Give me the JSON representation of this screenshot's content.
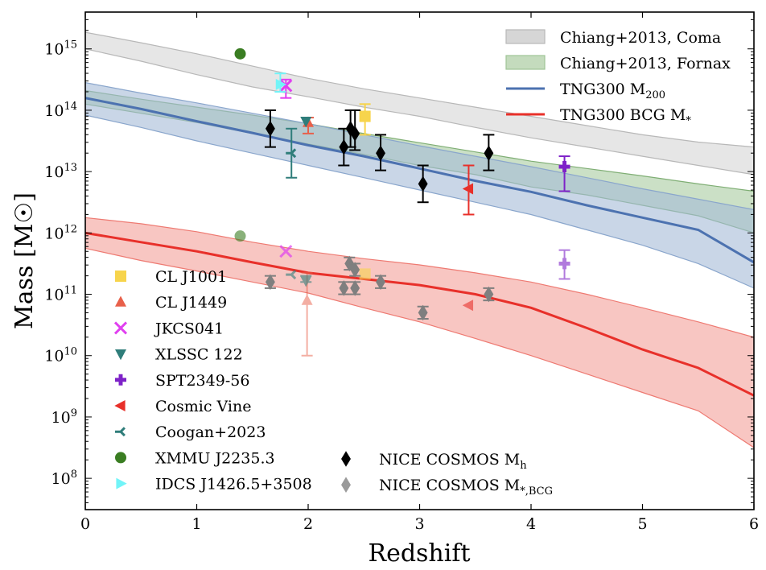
{
  "chart_data": {
    "type": "scatter",
    "title": "",
    "xlabel": "Redshift",
    "ylabel": "Mass [M☉]",
    "xlim": [
      0,
      6
    ],
    "ylim_log10": [
      7.49,
      15.6
    ],
    "yscale": "log",
    "grid": false,
    "x_ticks": [
      0,
      1,
      2,
      3,
      4,
      5,
      6
    ],
    "y_ticks": [
      {
        "log": 8,
        "label": "10",
        "exp": "8"
      },
      {
        "log": 9,
        "label": "10",
        "exp": "9"
      },
      {
        "log": 10,
        "label": "10",
        "exp": "10"
      },
      {
        "log": 11,
        "label": "10",
        "exp": "11"
      },
      {
        "log": 12,
        "label": "10",
        "exp": "12"
      },
      {
        "log": 13,
        "label": "10",
        "exp": "13"
      },
      {
        "log": 14,
        "label": "10",
        "exp": "14"
      },
      {
        "log": 15,
        "label": "10",
        "exp": "15"
      }
    ],
    "bands": [
      {
        "name": "Chiang+2013, Coma",
        "color": "#d6d6d6",
        "edge": "#b8b8b8",
        "x": [
          0,
          0.5,
          1,
          1.5,
          2,
          2.5,
          3,
          3.5,
          4,
          4.5,
          5,
          5.5,
          6
        ],
        "upper": [
          15.27,
          15.1,
          14.92,
          14.72,
          14.52,
          14.35,
          14.2,
          14.05,
          13.9,
          13.75,
          13.6,
          13.48,
          13.4
        ],
        "lower": [
          15.0,
          14.8,
          14.58,
          14.38,
          14.22,
          14.05,
          13.9,
          13.72,
          13.55,
          13.4,
          13.25,
          13.1,
          12.95
        ]
      },
      {
        "name": "Chiang+2013, Fornax",
        "color": "#a9cba0",
        "edge": "#7fae74",
        "x": [
          0,
          0.5,
          1,
          1.5,
          2,
          2.5,
          3,
          3.5,
          4,
          4.5,
          5,
          5.5,
          6
        ],
        "upper": [
          14.32,
          14.18,
          14.05,
          13.92,
          13.78,
          13.62,
          13.47,
          13.32,
          13.17,
          13.05,
          12.93,
          12.8,
          12.68
        ],
        "lower": [
          14.1,
          13.95,
          13.8,
          13.62,
          13.45,
          13.28,
          13.1,
          12.95,
          12.75,
          12.62,
          12.45,
          12.28,
          12.0
        ]
      },
      {
        "name": "TNG300 M200 scatter",
        "color": "#a5bbd7",
        "edge": "#8aa6cc",
        "x": [
          0,
          0.5,
          1,
          1.5,
          2,
          2.5,
          3,
          3.5,
          4,
          4.5,
          5,
          5.5,
          6
        ],
        "upper": [
          14.45,
          14.28,
          14.12,
          13.95,
          13.78,
          13.6,
          13.42,
          13.25,
          13.08,
          12.9,
          12.72,
          12.55,
          12.38
        ],
        "lower": [
          13.92,
          13.72,
          13.5,
          13.3,
          13.1,
          12.9,
          12.7,
          12.5,
          12.3,
          12.05,
          11.8,
          11.5,
          11.1
        ]
      },
      {
        "name": "TNG300 BCG M* scatter",
        "color": "#f4a09a",
        "edge": "#ee7a72",
        "x": [
          0,
          0.5,
          1,
          1.5,
          2,
          2.5,
          3,
          3.5,
          4,
          4.5,
          5,
          5.5,
          6
        ],
        "upper": [
          12.25,
          12.15,
          12.02,
          11.85,
          11.7,
          11.58,
          11.48,
          11.35,
          11.2,
          11.0,
          10.78,
          10.55,
          10.3
        ],
        "lower": [
          11.75,
          11.55,
          11.38,
          11.2,
          11.02,
          10.78,
          10.55,
          10.28,
          10.0,
          9.7,
          9.4,
          9.1,
          8.5
        ]
      }
    ],
    "lines": [
      {
        "name": "TNG300 M200",
        "sub": "200",
        "color": "#4c72b0",
        "x": [
          0,
          0.5,
          1,
          1.5,
          2,
          2.5,
          3,
          3.5,
          4,
          4.5,
          5,
          5.5,
          6
        ],
        "y": [
          14.2,
          14.02,
          13.82,
          13.63,
          13.43,
          13.25,
          13.05,
          12.85,
          12.67,
          12.45,
          12.25,
          12.05,
          11.52
        ]
      },
      {
        "name": "TNG300 BCG M*",
        "sub": "*",
        "color": "#e8302a",
        "x": [
          0,
          0.5,
          1,
          1.5,
          2,
          2.5,
          3,
          3.5,
          4,
          4.5,
          5,
          5.5,
          6
        ],
        "y": [
          12.0,
          11.85,
          11.7,
          11.52,
          11.35,
          11.25,
          11.15,
          11.0,
          10.78,
          10.45,
          10.1,
          9.8,
          9.35
        ]
      }
    ],
    "points": [
      {
        "set": "CL J1001",
        "marker": "square",
        "color": "#f7d44c",
        "alpha": 1,
        "x": 2.51,
        "y": 13.9,
        "lo": 13.6,
        "hi": 14.1
      },
      {
        "set": "CL J1001",
        "marker": "square",
        "color": "#f7d44c",
        "alpha": 0.6,
        "x": 2.51,
        "y": 11.33,
        "lo": 11.33,
        "hi": 11.33
      },
      {
        "set": "CL J1449",
        "marker": "triangle-up",
        "color": "#e8604a",
        "alpha": 1,
        "x": 2.0,
        "y": 13.8,
        "lo": 13.62,
        "hi": 13.88
      },
      {
        "set": "CL J1449",
        "marker": "triangle-up",
        "color": "#e8604a",
        "alpha": 0.5,
        "x": 1.99,
        "y": 10.9,
        "lo": 10.0,
        "hi": 11.35
      },
      {
        "set": "JKCS041",
        "marker": "x",
        "color": "#e040f0",
        "alpha": 1,
        "x": 1.8,
        "y": 14.4,
        "lo": 14.2,
        "hi": 14.5
      },
      {
        "set": "JKCS041",
        "marker": "x",
        "color": "#e040f0",
        "alpha": 0.7,
        "x": 1.8,
        "y": 11.7,
        "lo": 11.7,
        "hi": 11.7
      },
      {
        "set": "XLSSC 122",
        "marker": "triangle-down",
        "color": "#2f7d7a",
        "alpha": 1,
        "x": 1.98,
        "y": 13.82,
        "lo": 13.82,
        "hi": 13.82
      },
      {
        "set": "XLSSC 122",
        "marker": "triangle-down",
        "color": "#2f7d7a",
        "alpha": 0.6,
        "x": 1.98,
        "y": 11.22,
        "lo": 11.2,
        "hi": 11.3
      },
      {
        "set": "SPT2349-56",
        "marker": "plus",
        "color": "#7e22c8",
        "alpha": 1,
        "x": 4.3,
        "y": 13.08,
        "lo": 12.68,
        "hi": 13.25
      },
      {
        "set": "SPT2349-56",
        "marker": "plus",
        "color": "#7e22c8",
        "alpha": 0.6,
        "x": 4.3,
        "y": 11.5,
        "lo": 11.25,
        "hi": 11.72
      },
      {
        "set": "Cosmic Vine",
        "marker": "triangle-left",
        "color": "#e8302a",
        "alpha": 1,
        "x": 3.44,
        "y": 12.72,
        "lo": 12.3,
        "hi": 13.1
      },
      {
        "set": "Cosmic Vine",
        "marker": "triangle-left",
        "color": "#e8302a",
        "alpha": 0.6,
        "x": 3.44,
        "y": 10.82,
        "lo": 10.82,
        "hi": 10.82
      },
      {
        "set": "Coogan+2023",
        "marker": "tri",
        "color": "#2f7d7a",
        "alpha": 1,
        "x": 1.85,
        "y": 13.3,
        "lo": 12.9,
        "hi": 13.7
      },
      {
        "set": "Coogan+2023",
        "marker": "tri",
        "color": "#2f7d7a",
        "alpha": 0.6,
        "x": 1.85,
        "y": 11.32,
        "lo": 11.32,
        "hi": 11.32
      },
      {
        "set": "XMMU J2235.3",
        "marker": "octagon",
        "color": "#3a7d22",
        "alpha": 1,
        "x": 1.39,
        "y": 14.92,
        "lo": 14.92,
        "hi": 14.92
      },
      {
        "set": "XMMU J2235.3",
        "marker": "octagon",
        "color": "#3a7d22",
        "alpha": 0.6,
        "x": 1.39,
        "y": 11.95,
        "lo": 11.95,
        "hi": 11.95
      },
      {
        "set": "IDCS J1426.5+3508",
        "marker": "triangle-right",
        "color": "#72f4f8",
        "alpha": 1,
        "x": 1.75,
        "y": 14.42,
        "lo": 14.3,
        "hi": 14.6
      },
      {
        "set": "NICE COSMOS Mh",
        "marker": "diamond",
        "color": "#000000",
        "alpha": 1,
        "x": 1.66,
        "y": 13.7,
        "lo": 13.4,
        "hi": 14.0
      },
      {
        "set": "NICE COSMOS Mh",
        "marker": "diamond",
        "color": "#000000",
        "alpha": 1,
        "x": 2.32,
        "y": 13.4,
        "lo": 13.1,
        "hi": 13.7
      },
      {
        "set": "NICE COSMOS Mh",
        "marker": "diamond",
        "color": "#000000",
        "alpha": 1,
        "x": 2.38,
        "y": 13.7,
        "lo": 13.4,
        "hi": 14.0
      },
      {
        "set": "NICE COSMOS Mh",
        "marker": "diamond",
        "color": "#000000",
        "alpha": 1,
        "x": 2.42,
        "y": 13.62,
        "lo": 13.35,
        "hi": 14.0
      },
      {
        "set": "NICE COSMOS Mh",
        "marker": "diamond",
        "color": "#000000",
        "alpha": 1,
        "x": 2.65,
        "y": 13.3,
        "lo": 13.02,
        "hi": 13.6
      },
      {
        "set": "NICE COSMOS Mh",
        "marker": "diamond",
        "color": "#000000",
        "alpha": 1,
        "x": 3.03,
        "y": 12.8,
        "lo": 12.5,
        "hi": 13.1
      },
      {
        "set": "NICE COSMOS Mh",
        "marker": "diamond",
        "color": "#000000",
        "alpha": 1,
        "x": 3.62,
        "y": 13.3,
        "lo": 13.02,
        "hi": 13.6
      },
      {
        "set": "NICE COSMOS M*,BCG",
        "marker": "diamond",
        "color": "#7f7f7f",
        "alpha": 1,
        "x": 1.66,
        "y": 11.2,
        "lo": 11.1,
        "hi": 11.3
      },
      {
        "set": "NICE COSMOS M*,BCG",
        "marker": "diamond",
        "color": "#7f7f7f",
        "alpha": 1,
        "x": 2.32,
        "y": 11.1,
        "lo": 11.0,
        "hi": 11.2
      },
      {
        "set": "NICE COSMOS M*,BCG",
        "marker": "diamond",
        "color": "#7f7f7f",
        "alpha": 1,
        "x": 2.37,
        "y": 11.5,
        "lo": 11.4,
        "hi": 11.6
      },
      {
        "set": "NICE COSMOS M*,BCG",
        "marker": "diamond",
        "color": "#7f7f7f",
        "alpha": 1,
        "x": 2.42,
        "y": 11.4,
        "lo": 11.3,
        "hi": 11.5
      },
      {
        "set": "NICE COSMOS M*,BCG",
        "marker": "diamond",
        "color": "#7f7f7f",
        "alpha": 1,
        "x": 2.42,
        "y": 11.1,
        "lo": 11.0,
        "hi": 11.2
      },
      {
        "set": "NICE COSMOS M*,BCG",
        "marker": "diamond",
        "color": "#7f7f7f",
        "alpha": 1,
        "x": 2.65,
        "y": 11.2,
        "lo": 11.1,
        "hi": 11.3
      },
      {
        "set": "NICE COSMOS M*,BCG",
        "marker": "diamond",
        "color": "#7f7f7f",
        "alpha": 1,
        "x": 3.03,
        "y": 10.7,
        "lo": 10.6,
        "hi": 10.8
      },
      {
        "set": "NICE COSMOS M*,BCG",
        "marker": "diamond",
        "color": "#7f7f7f",
        "alpha": 1,
        "x": 3.62,
        "y": 11.0,
        "lo": 10.9,
        "hi": 11.1
      }
    ],
    "legend_upper_right": [
      {
        "label": "Chiang+2013, Coma",
        "sub": "",
        "kind": "patch",
        "color": "#d6d6d6",
        "edge": "#b8b8b8"
      },
      {
        "label": "Chiang+2013, Fornax",
        "sub": "",
        "kind": "patch",
        "color": "#c4dbbd",
        "edge": "#9fc496"
      },
      {
        "label": "TNG300 M",
        "sub": "200",
        "kind": "line",
        "color": "#4c72b0"
      },
      {
        "label": "TNG300 BCG M",
        "sub": "*",
        "kind": "line",
        "color": "#e8302a"
      }
    ],
    "legend_lower_left": [
      {
        "label": "CL J1001",
        "marker": "square",
        "color": "#f7d44c"
      },
      {
        "label": "CL J1449",
        "marker": "triangle-up",
        "color": "#e8604a"
      },
      {
        "label": "JKCS041",
        "marker": "x",
        "color": "#e040f0"
      },
      {
        "label": "XLSSC 122",
        "marker": "triangle-down",
        "color": "#2f7d7a"
      },
      {
        "label": "SPT2349-56",
        "marker": "plus",
        "color": "#7e22c8"
      },
      {
        "label": "Cosmic Vine",
        "marker": "triangle-left",
        "color": "#e8302a"
      },
      {
        "label": "Coogan+2023",
        "marker": "tri",
        "color": "#2f7d7a"
      },
      {
        "label": "XMMU J2235.3",
        "marker": "octagon",
        "color": "#3a7d22"
      },
      {
        "label": "IDCS J1426.5+3508",
        "marker": "triangle-right",
        "color": "#72f4f8"
      }
    ],
    "legend_lower_center": [
      {
        "label": "NICE COSMOS M",
        "sub": "h",
        "marker": "diamond",
        "color": "#000000"
      },
      {
        "label": "NICE COSMOS M",
        "sub": "*,BCG",
        "marker": "diamond",
        "color": "#9a9a9a"
      }
    ]
  }
}
